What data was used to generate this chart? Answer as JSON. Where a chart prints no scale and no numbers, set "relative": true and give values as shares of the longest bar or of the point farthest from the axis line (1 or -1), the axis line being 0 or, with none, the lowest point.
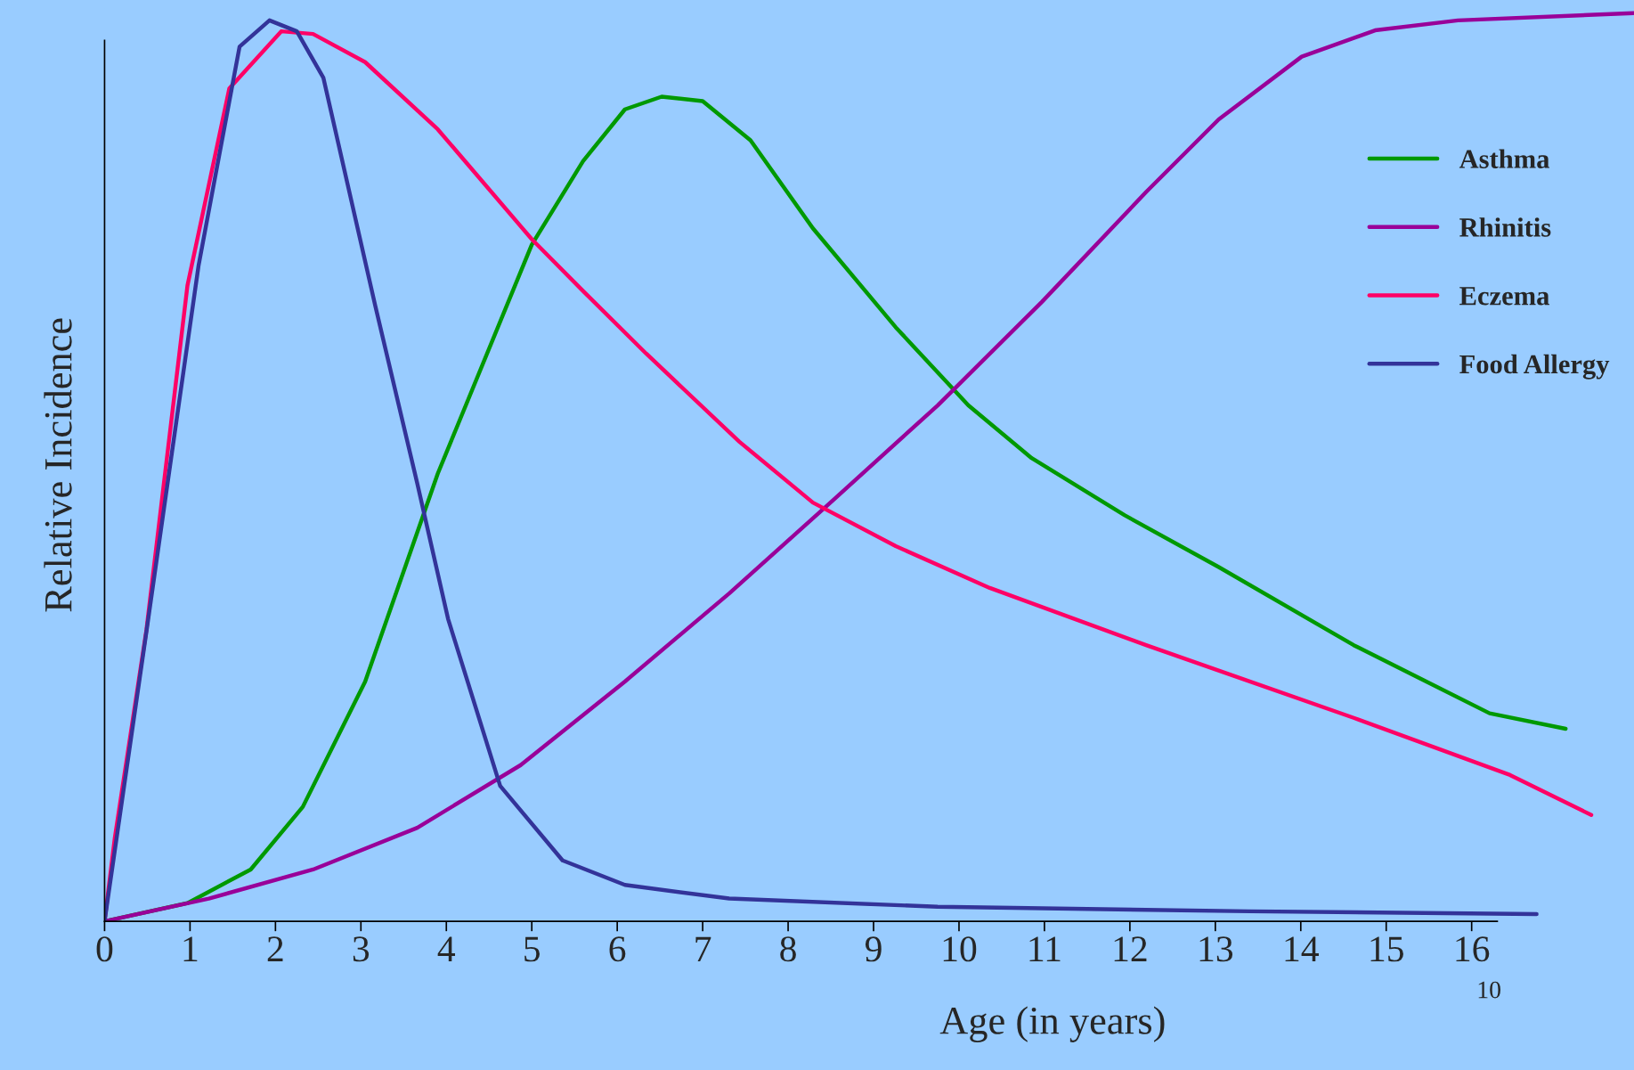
{
  "chart_data": {
    "type": "line",
    "relative": true,
    "xlabel": "Age (in years)",
    "ylabel": "Relative Incidence",
    "xlim": [
      0,
      17.9
    ],
    "xticks": [
      0,
      1,
      2,
      3,
      4,
      5,
      6,
      7,
      8,
      9,
      10,
      11,
      12,
      13,
      14,
      15,
      16
    ],
    "grid": false,
    "legend": "right",
    "marker": "none",
    "line_style": "solid",
    "annotations": [
      "10"
    ],
    "series": [
      {
        "name": "Asthma",
        "color": "#009900",
        "x": [
          0,
          0.97,
          1.71,
          2.32,
          3.05,
          3.9,
          5.0,
          5.6,
          6.09,
          6.52,
          7.0,
          7.56,
          8.29,
          9.26,
          10.11,
          10.85,
          11.94,
          13.04,
          14.62,
          16.21,
          17.1
        ],
        "values": [
          0,
          0.02,
          0.057,
          0.126,
          0.264,
          0.493,
          0.745,
          0.837,
          0.894,
          0.908,
          0.903,
          0.86,
          0.763,
          0.654,
          0.568,
          0.51,
          0.447,
          0.39,
          0.304,
          0.229,
          0.212
        ]
      },
      {
        "name": "Rhinitis",
        "color": "#990099",
        "x": [
          0,
          1.22,
          2.44,
          3.66,
          4.87,
          6.09,
          7.31,
          8.53,
          9.75,
          10.97,
          12.19,
          13.04,
          14.01,
          14.87,
          15.84,
          17.89
        ],
        "values": [
          0,
          0.025,
          0.057,
          0.103,
          0.172,
          0.264,
          0.361,
          0.464,
          0.568,
          0.682,
          0.803,
          0.883,
          0.952,
          0.981,
          0.992,
          1.0
        ]
      },
      {
        "name": "Eczema",
        "color": "#ff0066",
        "x": [
          0,
          0.12,
          0.49,
          0.97,
          1.46,
          2.07,
          2.44,
          3.05,
          3.9,
          5.0,
          5.6,
          6.34,
          7.43,
          8.29,
          9.26,
          10.36,
          12.19,
          14.62,
          16.45,
          17.4
        ],
        "values": [
          0,
          0.092,
          0.321,
          0.7,
          0.917,
          0.98,
          0.977,
          0.946,
          0.872,
          0.751,
          0.694,
          0.625,
          0.528,
          0.461,
          0.413,
          0.367,
          0.304,
          0.224,
          0.161,
          0.117
        ]
      },
      {
        "name": "Food Allergy",
        "color": "#333399",
        "x": [
          0,
          0.49,
          1.1,
          1.58,
          1.93,
          2.25,
          2.56,
          3.17,
          3.66,
          4.02,
          4.63,
          5.36,
          6.09,
          7.31,
          9.75,
          13.4,
          16.76
        ],
        "values": [
          0,
          0.319,
          0.722,
          0.963,
          0.992,
          0.98,
          0.929,
          0.677,
          0.482,
          0.333,
          0.149,
          0.067,
          0.04,
          0.025,
          0.016,
          0.011,
          0.008
        ]
      }
    ]
  }
}
